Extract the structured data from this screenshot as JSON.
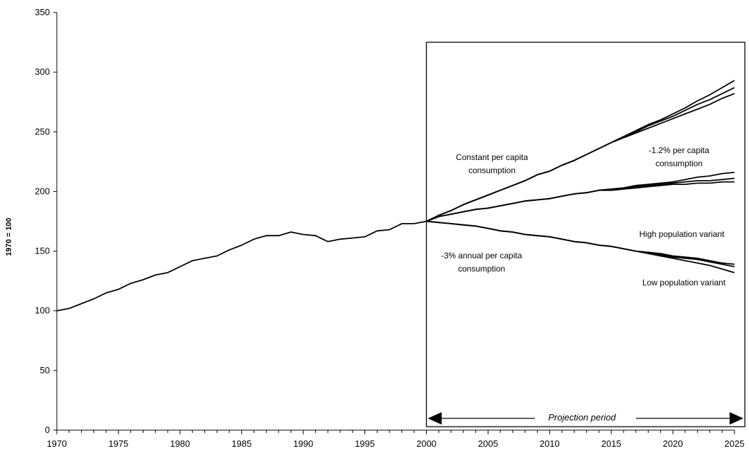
{
  "chart_data": {
    "type": "line",
    "title": "",
    "xlabel": "",
    "ylabel": "1970 = 100",
    "xlim": [
      1970,
      2025
    ],
    "ylim": [
      0,
      350
    ],
    "x_ticks": [
      1970,
      1975,
      1980,
      1985,
      1990,
      1995,
      2000,
      2005,
      2010,
      2015,
      2020,
      2025
    ],
    "y_ticks": [
      0,
      50,
      100,
      150,
      200,
      250,
      300,
      350
    ],
    "grid": false,
    "historical": {
      "x": [
        1970,
        1971,
        1972,
        1973,
        1974,
        1975,
        1976,
        1977,
        1978,
        1979,
        1980,
        1981,
        1982,
        1983,
        1984,
        1985,
        1986,
        1987,
        1988,
        1989,
        1990,
        1991,
        1992,
        1993,
        1994,
        1995,
        1996,
        1997,
        1998,
        1999,
        2000
      ],
      "values": [
        100,
        102,
        106,
        110,
        115,
        118,
        123,
        126,
        130,
        132,
        137,
        142,
        144,
        146,
        151,
        155,
        160,
        163,
        163,
        166,
        164,
        163,
        158,
        160,
        161,
        162,
        167,
        168,
        173,
        173,
        175
      ]
    },
    "projection_x": [
      2000,
      2001,
      2002,
      2003,
      2004,
      2005,
      2006,
      2007,
      2008,
      2009,
      2010,
      2011,
      2012,
      2013,
      2014,
      2015,
      2016,
      2017,
      2018,
      2019,
      2020,
      2021,
      2022,
      2023,
      2024,
      2025
    ],
    "series": [
      {
        "values": [
          175,
          180,
          184,
          189,
          193,
          197,
          201,
          205,
          209,
          214,
          217,
          222,
          226,
          231,
          236,
          241,
          246,
          250,
          255,
          259,
          263,
          268,
          273,
          277,
          282,
          287
        ]
      },
      {
        "values": [
          175,
          180,
          184,
          189,
          193,
          197,
          201,
          205,
          209,
          214,
          217,
          222,
          226,
          231,
          236,
          241,
          246,
          251,
          256,
          260,
          265,
          270,
          276,
          281,
          287,
          293
        ]
      },
      {
        "values": [
          175,
          180,
          184,
          189,
          193,
          197,
          201,
          205,
          209,
          214,
          217,
          222,
          226,
          231,
          236,
          241,
          245,
          249,
          253,
          257,
          261,
          265,
          269,
          273,
          278,
          282
        ]
      },
      {
        "values": [
          175,
          179,
          181,
          183,
          185,
          186,
          188,
          190,
          192,
          193,
          194,
          196,
          198,
          199,
          201,
          202,
          203,
          204,
          205,
          206,
          207,
          208,
          209,
          209,
          210,
          211
        ]
      },
      {
        "values": [
          175,
          179,
          181,
          183,
          185,
          186,
          188,
          190,
          192,
          193,
          194,
          196,
          198,
          199,
          201,
          202,
          203,
          205,
          206,
          207,
          208,
          210,
          212,
          213,
          215,
          216
        ]
      },
      {
        "values": [
          175,
          179,
          181,
          183,
          185,
          186,
          188,
          190,
          192,
          193,
          194,
          196,
          198,
          199,
          201,
          201,
          202,
          203,
          204,
          205,
          206,
          206,
          207,
          207,
          208,
          208
        ]
      },
      {
        "values": [
          175,
          174,
          173,
          172,
          171,
          169,
          167,
          166,
          164,
          163,
          162,
          160,
          158,
          157,
          155,
          154,
          152,
          150,
          149,
          147,
          145,
          144,
          143,
          141,
          139,
          137
        ]
      },
      {
        "values": [
          175,
          174,
          173,
          172,
          171,
          169,
          167,
          166,
          164,
          163,
          162,
          160,
          158,
          157,
          155,
          154,
          152,
          150,
          149,
          148,
          146,
          145,
          144,
          142,
          140,
          139
        ]
      },
      {
        "values": [
          175,
          174,
          173,
          172,
          171,
          169,
          167,
          166,
          164,
          163,
          162,
          160,
          158,
          157,
          155,
          154,
          152,
          150,
          148,
          146,
          144,
          142,
          140,
          138,
          135,
          132
        ]
      }
    ],
    "annotations": {
      "constant": [
        "Constant per capita",
        "consumption"
      ],
      "minus12": [
        "-1.2% per capita",
        "consumption"
      ],
      "high_pop": "High population variant",
      "minus3": [
        "-3% annual per capita",
        "consumption"
      ],
      "low_pop": "Low population variant",
      "projection": "Projection period"
    },
    "projection_box_from": 2000,
    "projection_box_to": 2025
  }
}
